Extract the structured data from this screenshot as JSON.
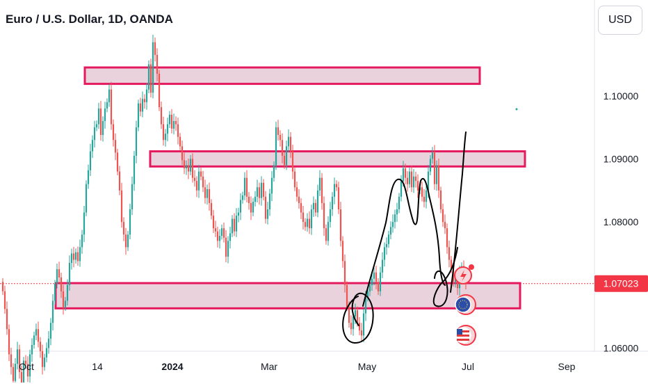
{
  "header": {
    "title": "Euro / U.S. Dollar, 1D, OANDA",
    "currency_button": "USD"
  },
  "colors": {
    "up": "#26a69a",
    "down": "#ef5350",
    "zone_fill": "#ead2dc",
    "zone_border": "#e5195e",
    "price_label_bg": "#f23645",
    "drawing": "#000000"
  },
  "price_axis": {
    "ticks": [
      "1.10000",
      "1.09000",
      "1.08000",
      "1.06000"
    ],
    "last_price": "1.07023"
  },
  "time_axis": {
    "labels": [
      "Oct",
      "14",
      "2024",
      "Mar",
      "May",
      "Jul",
      "Sep"
    ]
  },
  "chart_data": {
    "type": "candlestick",
    "title": "Euro / U.S. Dollar, 1D, OANDA",
    "ylim": [
      1.0595,
      1.1152
    ],
    "last_price": 1.07023,
    "zones": [
      {
        "from": 1.1019,
        "to": 1.1045
      },
      {
        "from": 1.0888,
        "to": 1.0912
      },
      {
        "from": 1.0663,
        "to": 1.0703
      }
    ],
    "closes": [
      1.069,
      1.0662,
      1.063,
      1.059,
      1.057,
      1.0548,
      1.0575,
      1.0598,
      1.0562,
      1.0535,
      1.058,
      1.0575,
      1.0555,
      1.059,
      1.0605,
      1.062,
      1.063,
      1.061,
      1.0595,
      1.057,
      1.0585,
      1.06,
      1.0615,
      1.064,
      1.0675,
      1.0702,
      1.0725,
      1.0712,
      1.069,
      1.0665,
      1.0675,
      1.07,
      1.0735,
      1.075,
      1.074,
      1.0752,
      1.0738,
      1.076,
      1.078,
      1.0815,
      1.086,
      1.0882,
      1.0912,
      1.093,
      1.095,
      1.0955,
      1.098,
      1.0938,
      1.096,
      1.098,
      1.099,
      1.101,
      1.0955,
      1.093,
      1.091,
      1.088,
      1.085,
      1.08,
      1.078,
      1.076,
      1.078,
      1.082,
      1.086,
      1.0905,
      1.095,
      1.0988,
      1.0975,
      1.0995,
      1.099,
      1.101,
      1.105,
      1.1005,
      1.1085,
      1.1065,
      1.1035,
      1.0982,
      1.0955,
      1.093,
      1.094,
      1.0955,
      1.097,
      1.0948,
      1.096,
      1.0955,
      1.0935,
      1.092,
      1.0898,
      1.0885,
      1.089,
      1.088,
      1.09,
      1.087,
      1.0865,
      1.085,
      1.088,
      1.0872,
      1.0855,
      1.0838,
      1.0852,
      1.083,
      1.081,
      1.079,
      1.0785,
      1.077,
      1.0778,
      1.079,
      1.0775,
      1.0745,
      1.077,
      1.0782,
      1.0805,
      1.0785,
      1.081,
      1.0815,
      1.0835,
      1.0842,
      1.087,
      1.084,
      1.083,
      1.0815,
      1.0832,
      1.084,
      1.0855,
      1.0838,
      1.0862,
      1.084,
      1.0805,
      1.082,
      1.0845,
      1.087,
      1.089,
      1.095,
      1.0938,
      1.093,
      1.0905,
      1.089,
      1.092,
      1.0935,
      1.0912,
      1.088,
      1.0855,
      1.084,
      1.083,
      1.0815,
      1.08,
      1.0792,
      1.0805,
      1.079,
      1.082,
      1.083,
      1.0815,
      1.085,
      1.087,
      1.083,
      1.079,
      1.077,
      1.08,
      1.082,
      1.084,
      1.086,
      1.0855,
      1.082,
      1.077,
      1.0738,
      1.07,
      1.0665,
      1.064,
      1.063,
      1.065,
      1.066,
      1.064,
      1.0628,
      1.062,
      1.0655,
      1.068,
      1.069,
      1.07,
      1.071,
      1.072,
      1.0705,
      1.069,
      1.072,
      1.074,
      1.076,
      1.0765,
      1.078,
      1.0792,
      1.08,
      1.0812,
      1.082,
      1.084,
      1.0865,
      1.0885,
      1.087,
      1.086,
      1.088,
      1.0855,
      1.0872,
      1.0865,
      1.085,
      1.0855,
      1.084,
      1.0832,
      1.085,
      1.088,
      1.09,
      1.091,
      1.086,
      1.089,
      1.085,
      1.082,
      1.08,
      1.079,
      1.076,
      1.074,
      1.0725,
      1.0705,
      1.071,
      1.0695,
      1.072,
      1.073,
      1.0715,
      1.0702
    ]
  }
}
